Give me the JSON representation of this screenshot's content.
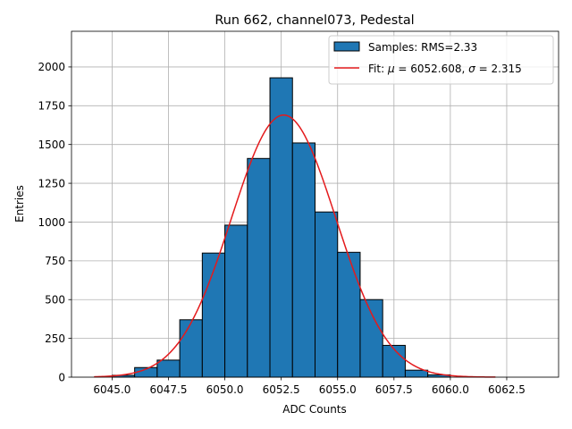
{
  "chart_data": {
    "type": "bar",
    "title": "Run 662, channel073, Pedestal",
    "xlabel": "ADC Counts",
    "ylabel": "Entries",
    "xlim": [
      6043.2,
      6064.8
    ],
    "ylim": [
      0,
      2230
    ],
    "grid": true,
    "legend_position": "top-right",
    "colors": {
      "bars": "#1f77b4",
      "fit": "#e41a1c"
    },
    "xticks": [
      6045.0,
      6047.5,
      6050.0,
      6052.5,
      6055.0,
      6057.5,
      6060.0,
      6062.5
    ],
    "xtick_labels": [
      "6045.0",
      "6047.5",
      "6050.0",
      "6052.5",
      "6055.0",
      "6057.5",
      "6060.0",
      "6062.5"
    ],
    "yticks": [
      0,
      250,
      500,
      750,
      1000,
      1250,
      1500,
      1750,
      2000
    ],
    "ytick_labels": [
      "0",
      "250",
      "500",
      "750",
      "1000",
      "1250",
      "1500",
      "1750",
      "2000"
    ],
    "bin_width": 1.0,
    "series": [
      {
        "name": "Samples: RMS=2.33",
        "kind": "histogram",
        "bin_left_edges": [
          6045,
          6046,
          6047,
          6048,
          6049,
          6050,
          6051,
          6052,
          6053,
          6054,
          6055,
          6056,
          6057,
          6058,
          6059
        ],
        "values": [
          12,
          62,
          110,
          370,
          800,
          980,
          1410,
          1930,
          1510,
          1065,
          805,
          500,
          205,
          45,
          15
        ]
      },
      {
        "name": "Fit: $\\mu$ = 6052.608, $\\sigma$ = 2.315",
        "kind": "gaussian",
        "mu": 6052.608,
        "sigma": 2.315,
        "amplitude": 1690,
        "x_range": [
          6044.2,
          6062.0
        ]
      }
    ],
    "legend": {
      "entries": [
        {
          "label": "Samples: RMS=2.33"
        },
        {
          "label_prefix": "Fit: ",
          "mu_symbol": "μ",
          "mu_text": " = 6052.608, ",
          "sigma_symbol": "σ",
          "sigma_text": " = 2.315"
        }
      ]
    }
  }
}
